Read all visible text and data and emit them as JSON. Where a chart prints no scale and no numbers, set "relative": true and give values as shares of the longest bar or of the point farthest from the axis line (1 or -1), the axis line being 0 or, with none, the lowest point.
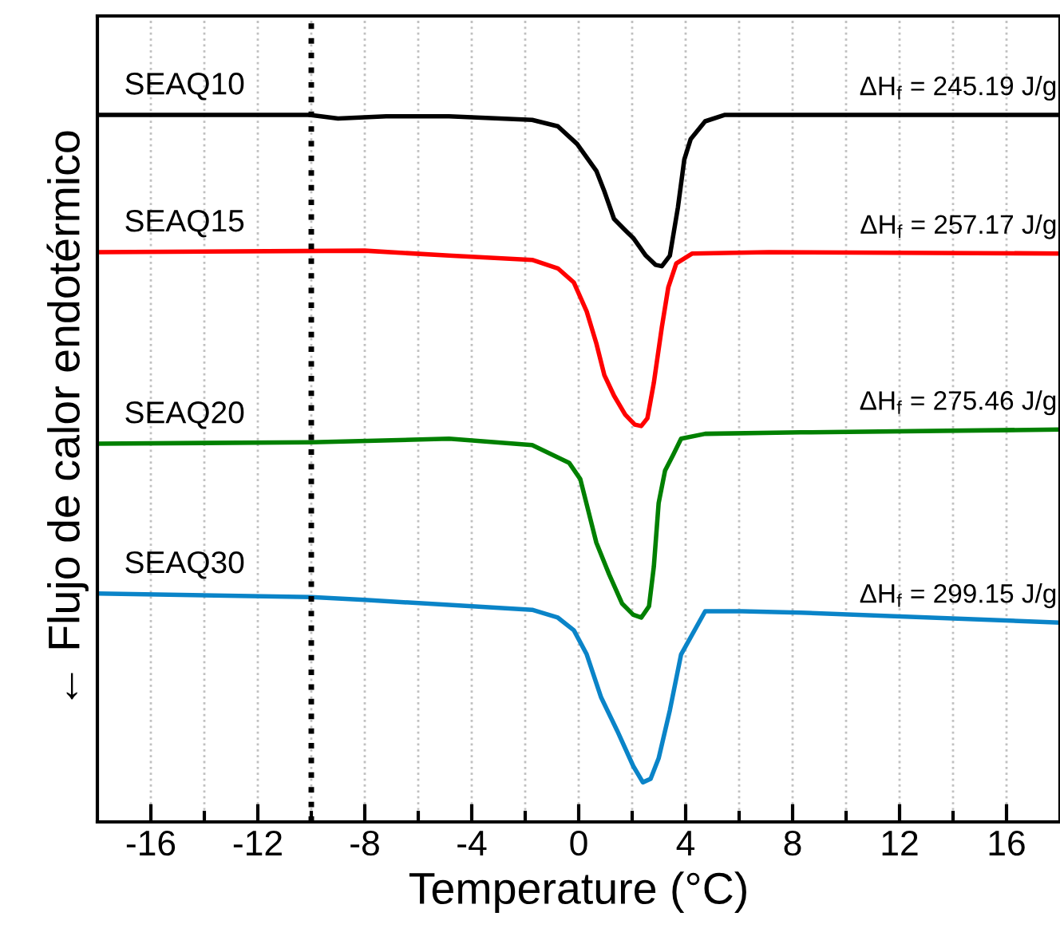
{
  "chart_data": {
    "type": "line",
    "relative": true,
    "xlabel": "Temperature (°C)",
    "ylabel": "← Flujo de calor endotérmico",
    "xlim": [
      -18,
      18
    ],
    "xticks": [
      -16,
      {
        "value": -14,
        "label": null
      },
      -12,
      {
        "value": -10,
        "label": null
      },
      -8,
      {
        "value": -6,
        "label": null
      },
      -4,
      {
        "value": -2,
        "label": null
      },
      0,
      {
        "value": 2,
        "label": null
      },
      4,
      {
        "value": 6,
        "label": null
      },
      8,
      {
        "value": 10,
        "label": null
      },
      12,
      {
        "value": 14,
        "label": null
      },
      16
    ],
    "grid": "x",
    "tick_labels": "x",
    "line_style": "solid",
    "marker": "none",
    "series": [
      {
        "name": "SEAQ10",
        "color": "#000000",
        "x": [
          -18,
          -10.06,
          -9,
          -7.2,
          -4.85,
          -1.74,
          -0.78,
          -0.06,
          0.66,
          0.96,
          1.32,
          1.74,
          2.04,
          2.51,
          2.87,
          3.11,
          3.41,
          3.71,
          3.95,
          4.19,
          4.73,
          5.45,
          7.1,
          18
        ],
        "values": [
          1.0,
          1.0,
          0.995,
          0.998,
          0.998,
          0.993,
          0.984,
          0.959,
          0.921,
          0.892,
          0.853,
          0.837,
          0.826,
          0.801,
          0.788,
          0.786,
          0.801,
          0.869,
          0.937,
          0.966,
          0.991,
          1.0,
          1.0,
          1.0
        ]
      },
      {
        "name": "SEAQ15",
        "color": "#ff0000",
        "x": [
          -18,
          -8,
          -4.85,
          -1.74,
          -0.78,
          -0.18,
          0.3,
          0.66,
          0.96,
          1.32,
          1.74,
          2.1,
          2.34,
          2.57,
          2.81,
          3.11,
          3.35,
          3.65,
          4.25,
          7.1,
          18
        ],
        "values": [
          0.806,
          0.808,
          0.801,
          0.795,
          0.783,
          0.763,
          0.722,
          0.677,
          0.632,
          0.603,
          0.576,
          0.562,
          0.56,
          0.571,
          0.621,
          0.7,
          0.756,
          0.79,
          0.804,
          0.806,
          0.804
        ]
      },
      {
        "name": "SEAQ20",
        "color": "#008000",
        "x": [
          -18,
          -10,
          -4.85,
          -1.74,
          -0.36,
          0.06,
          0.36,
          0.66,
          1.14,
          1.62,
          2.04,
          2.34,
          2.63,
          2.81,
          2.99,
          3.23,
          3.53,
          3.83,
          4.73,
          8.3,
          18
        ],
        "values": [
          0.535,
          0.537,
          0.542,
          0.533,
          0.508,
          0.485,
          0.44,
          0.395,
          0.35,
          0.309,
          0.293,
          0.289,
          0.305,
          0.361,
          0.451,
          0.497,
          0.519,
          0.542,
          0.549,
          0.551,
          0.555
        ]
      },
      {
        "name": "SEAQ30",
        "color": "#0a84c8",
        "x": [
          -18,
          -10,
          -8,
          -4.85,
          -1.74,
          -0.78,
          -0.18,
          0.3,
          0.84,
          1.44,
          2.04,
          2.4,
          2.69,
          2.99,
          3.41,
          3.83,
          4.73,
          6.1,
          8.3,
          18
        ],
        "values": [
          0.323,
          0.318,
          0.314,
          0.307,
          0.3,
          0.289,
          0.271,
          0.237,
          0.176,
          0.129,
          0.079,
          0.056,
          0.061,
          0.09,
          0.158,
          0.237,
          0.298,
          0.298,
          0.296,
          0.282
        ]
      }
    ],
    "ref_lines": [
      {
        "axis": "x",
        "value": -10,
        "color": "#000000",
        "line_style": "dotted"
      }
    ],
    "annotations": [
      "ΔH$_{f}$ = 245.19 J/g",
      "ΔH$_{f}$ = 257.17 J/g",
      "ΔH$_{f}$ = 275.46 J/g",
      "ΔH$_{f}$ = 299.15 J/g"
    ]
  }
}
